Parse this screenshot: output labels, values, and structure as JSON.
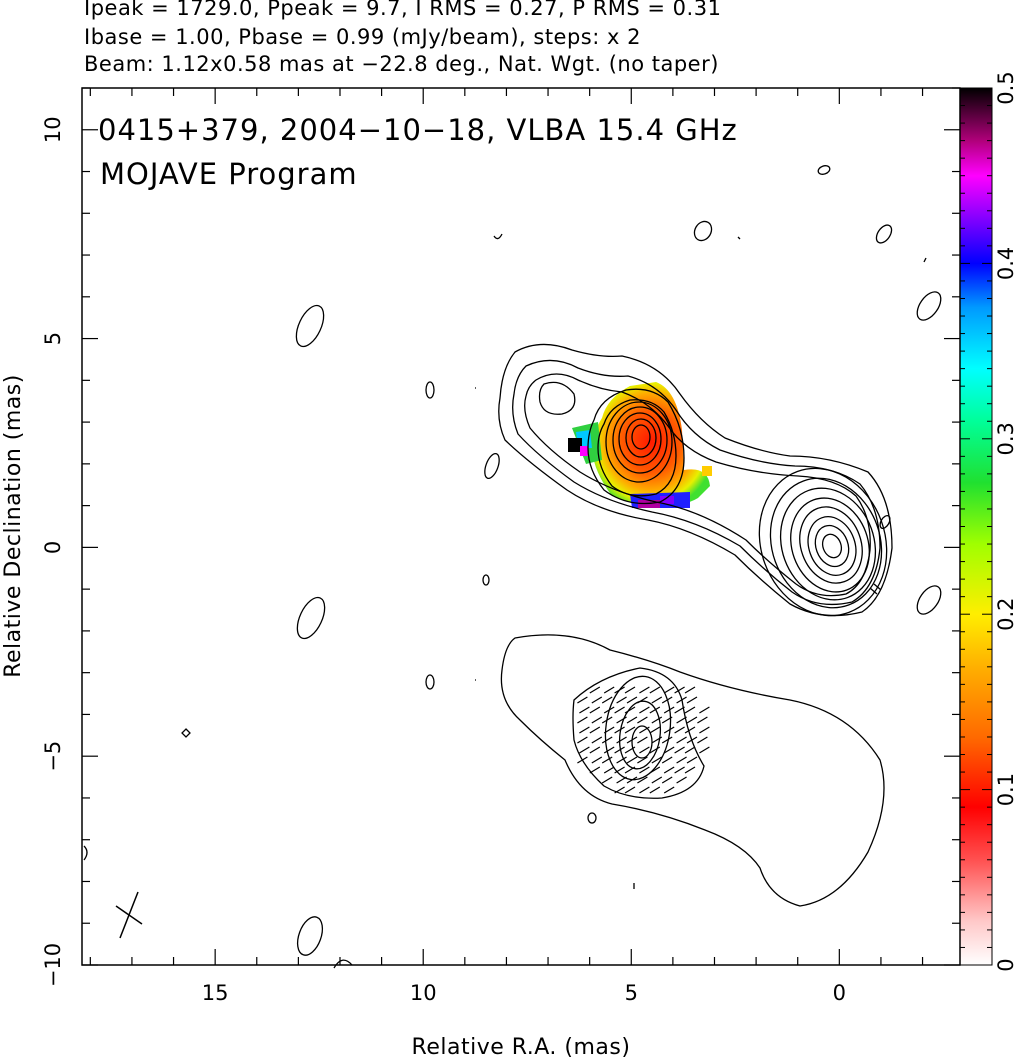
{
  "header": {
    "line1": "Ipeak = 1729.0, Ppeak = 9.7, I RMS = 0.27, P RMS = 0.31",
    "line2": "Ibase = 1.00, Pbase = 0.99 (mJy/beam), steps: x 2",
    "line3": "Beam: 1.12x0.58 mas at −22.8 deg., Nat. Wgt. (no taper)"
  },
  "chart_data": {
    "type": "heatmap",
    "title": "0415+379, 2004−10−18, VLBA 15.4 GHz",
    "subtitle": "MOJAVE Program",
    "xlabel": "Relative R.A. (mas)",
    "ylabel": "Relative Declination (mas)",
    "xlim": [
      18.2,
      -2.9
    ],
    "ylim": [
      -10.0,
      11.0
    ],
    "xticks": [
      15,
      10,
      5,
      0
    ],
    "xtick_labels": [
      "15",
      "10",
      "5",
      "0"
    ],
    "yticks": [
      10,
      5,
      0,
      -5,
      -10
    ],
    "ytick_labels": [
      "10",
      "5",
      "0",
      "−5",
      "−10"
    ],
    "colorbar": {
      "range": [
        0,
        0.5
      ],
      "ticks": [
        0,
        0.1,
        0.2,
        0.3,
        0.4,
        0.5
      ],
      "tick_labels": [
        "0",
        "0.1",
        "0.2",
        "0.3",
        "0.4",
        "0.5"
      ]
    },
    "grid": false
  }
}
